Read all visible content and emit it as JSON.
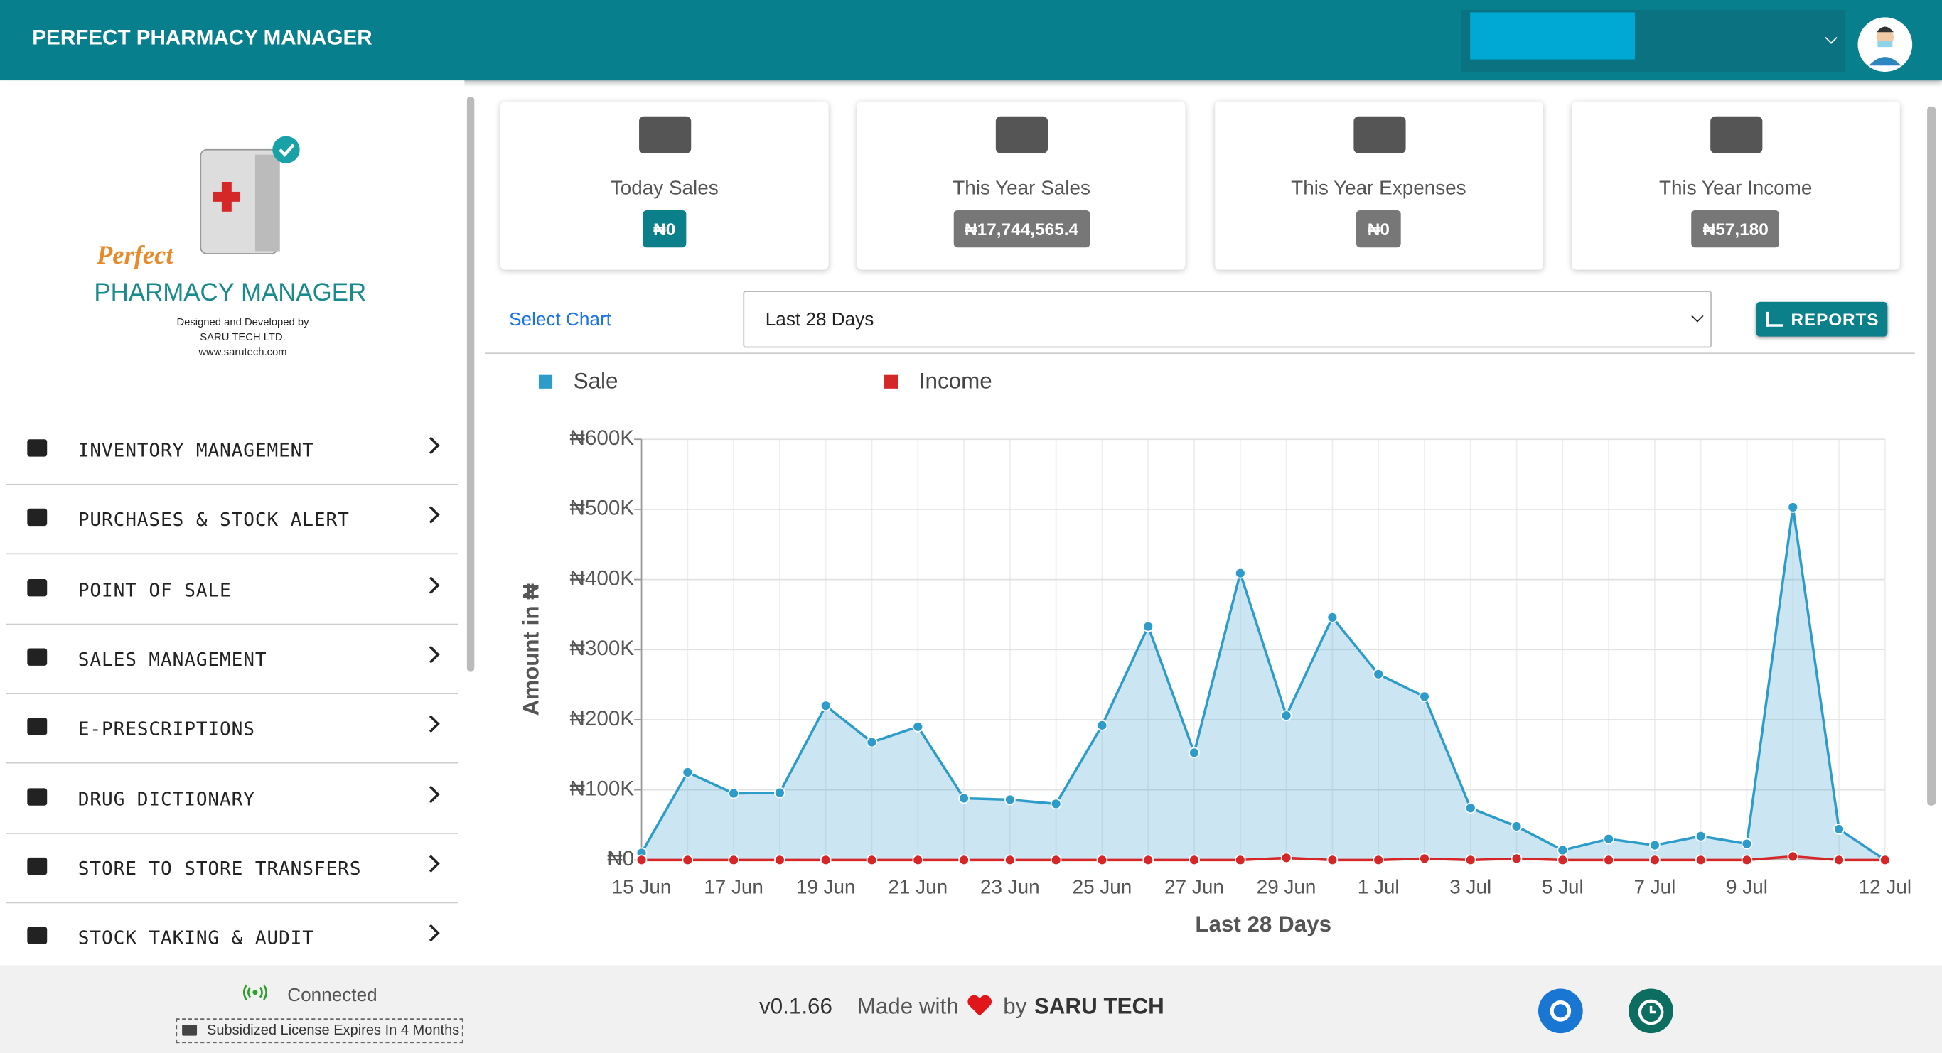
{
  "header": {
    "title": "PERFECT PHARMACY MANAGER"
  },
  "logo": {
    "brand_script": "Perfect",
    "brand": "PHARMACY MANAGER",
    "credit": [
      "Designed and Developed by",
      "SARU TECH LTD.",
      "www.sarutech.com"
    ]
  },
  "menu": [
    "INVENTORY MANAGEMENT",
    "PURCHASES & STOCK ALERT",
    "POINT OF SALE",
    "SALES MANAGEMENT",
    "E-PRESCRIPTIONS",
    "DRUG DICTIONARY",
    "STORE TO STORE TRANSFERS",
    "STOCK TAKING & AUDIT"
  ],
  "cards": [
    {
      "label": "Today Sales",
      "value": "₦0"
    },
    {
      "label": "This Year Sales",
      "value": "₦17,744,565.4"
    },
    {
      "label": "This Year Expenses",
      "value": "₦0"
    },
    {
      "label": "This Year Income",
      "value": "₦57,180"
    }
  ],
  "controls": {
    "select_label": "Select Chart",
    "selected": "Last 28 Days",
    "button": "REPORTS"
  },
  "chart_data": {
    "type": "line",
    "area": true,
    "xlabel": "Last 28 Days",
    "ylabel": "Amount in ₦",
    "categories": [
      "15 Jun",
      null,
      "17 Jun",
      null,
      "19 Jun",
      null,
      "21 Jun",
      null,
      "23 Jun",
      null,
      "25 Jun",
      null,
      "27 Jun",
      null,
      "29 Jun",
      null,
      "1 Jul",
      null,
      "3 Jul",
      null,
      "5 Jul",
      null,
      "7 Jul",
      null,
      "9 Jul",
      null,
      null,
      "12 Jul"
    ],
    "series": [
      {
        "name": "Sale",
        "color": "#2e9cca",
        "values": [
          10000,
          125000,
          95000,
          96000,
          220000,
          168000,
          190000,
          88000,
          86000,
          80000,
          192000,
          333000,
          153000,
          409000,
          206000,
          346000,
          265000,
          233000,
          74000,
          48000,
          14000,
          30000,
          21000,
          34000,
          23000,
          503000,
          44000,
          0
        ]
      },
      {
        "name": "Income",
        "color": "#d62728",
        "values": [
          0,
          0,
          0,
          0,
          0,
          0,
          0,
          0,
          0,
          0,
          0,
          0,
          0,
          0,
          3000,
          0,
          0,
          2000,
          0,
          2000,
          0,
          0,
          0,
          0,
          0,
          5000,
          0,
          0
        ]
      }
    ],
    "ylim": [
      0,
      600000
    ],
    "yticks": [
      {
        "value": 0,
        "label": "₦0"
      },
      {
        "value": 100000,
        "label": "₦100K"
      },
      {
        "value": 200000,
        "label": "₦200K"
      },
      {
        "value": 300000,
        "label": "₦300K"
      },
      {
        "value": 400000,
        "label": "₦400K"
      },
      {
        "value": 500000,
        "label": "₦500K"
      },
      {
        "value": 600000,
        "label": "₦600K"
      }
    ],
    "grid": true,
    "legend": "top-left"
  },
  "footer": {
    "status": "Connected",
    "license": "Subsidized License Expires In 4 Months",
    "version": "v0.1.66",
    "made_with": "Made with",
    "by": "by",
    "company": "SARU TECH"
  }
}
